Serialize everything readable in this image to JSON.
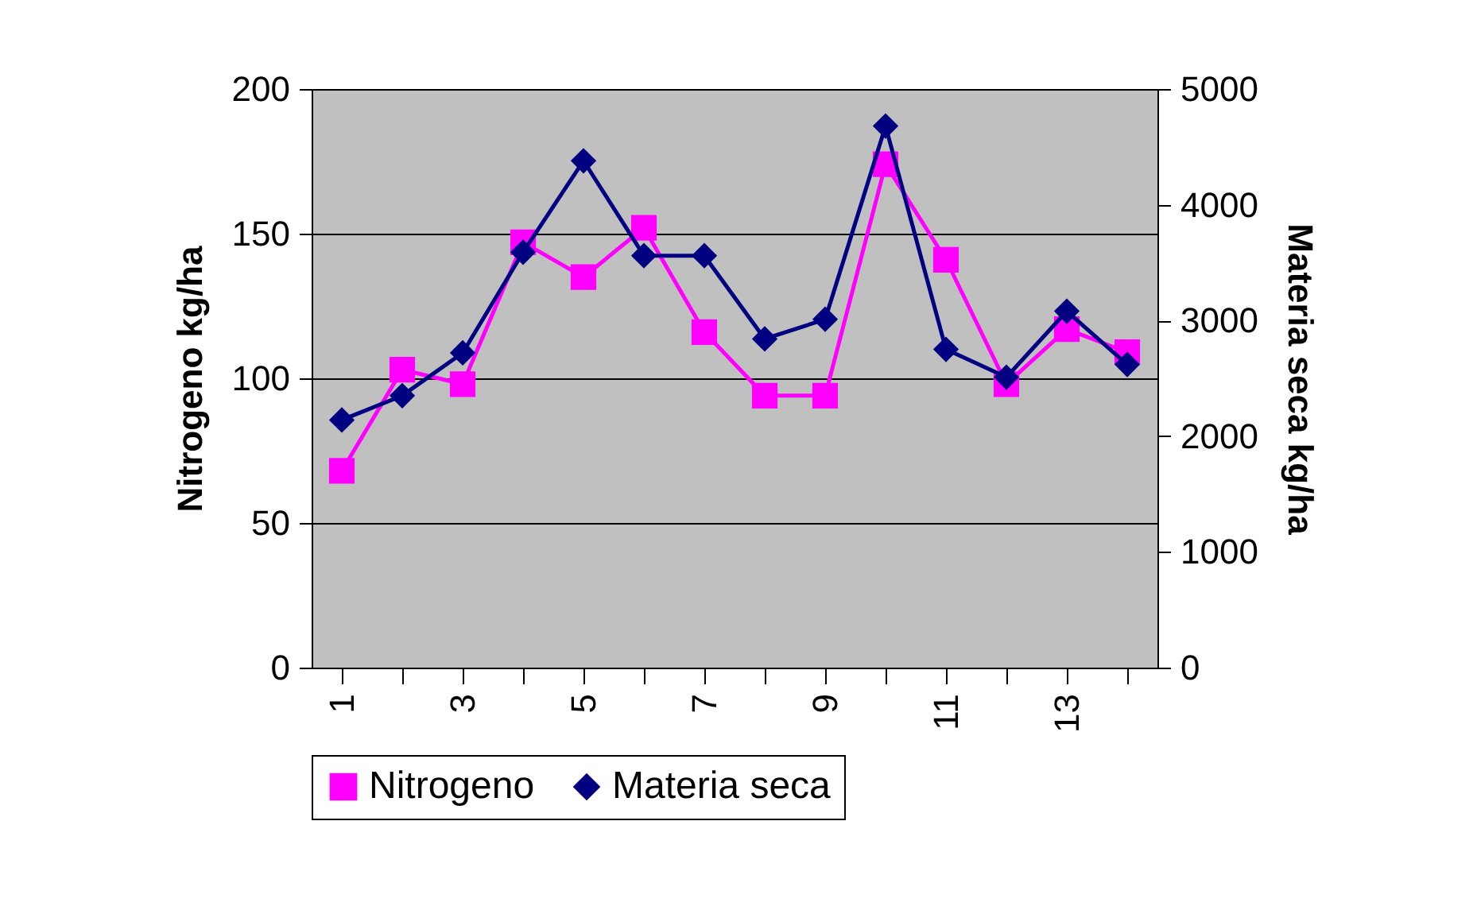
{
  "chart_data": {
    "type": "line",
    "ylabel": "Nitrogeno kg/ha",
    "y2label": "Materia seca kg/ha",
    "categories": [
      "1",
      null,
      "3",
      null,
      "5",
      null,
      "7",
      null,
      "9",
      null,
      "11",
      null,
      "13",
      null
    ],
    "series": [
      {
        "name": "Nitrogeno",
        "color": "#ff00ff",
        "marker": "square",
        "values": [
          68,
          103,
          98,
          147,
          135,
          152,
          116,
          94,
          94,
          174,
          141,
          98,
          117,
          109
        ]
      },
      {
        "name": "Materia seca",
        "color": "#000080",
        "marker": "diamond",
        "axis": "y2",
        "values": [
          2140,
          2350,
          2720,
          3590,
          4380,
          3560,
          3560,
          2840,
          3010,
          4680,
          2750,
          2510,
          3080,
          2620
        ]
      }
    ],
    "ylim": [
      0,
      200
    ],
    "yticks": [
      0,
      50,
      100,
      150,
      200
    ],
    "y2lim": [
      0,
      5000
    ],
    "y2ticks": [
      0,
      1000,
      2000,
      3000,
      4000,
      5000
    ],
    "grid": "y",
    "legend": "bottom"
  }
}
